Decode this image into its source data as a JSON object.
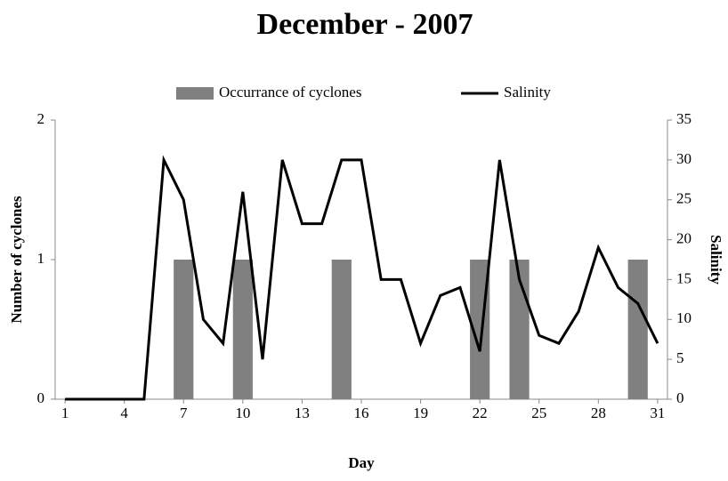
{
  "chart_data": {
    "type": "combo",
    "title": "December - 2007",
    "x_label": "Day",
    "y_label": "Number of cyclones",
    "y2_label": "Salinity",
    "x": [
      1,
      2,
      3,
      4,
      5,
      6,
      7,
      8,
      9,
      10,
      11,
      12,
      13,
      14,
      15,
      16,
      17,
      18,
      19,
      20,
      21,
      22,
      23,
      24,
      25,
      26,
      27,
      28,
      29,
      30,
      31
    ],
    "xlim": [
      0.5,
      31.5
    ],
    "xticks": [
      1,
      4,
      7,
      10,
      13,
      16,
      19,
      22,
      25,
      28,
      31
    ],
    "ylim": [
      0,
      2
    ],
    "yticks": [
      0,
      1,
      2
    ],
    "y2lim": [
      0,
      35
    ],
    "y2ticks": [
      0,
      5,
      10,
      15,
      20,
      25,
      30,
      35
    ],
    "grid": false,
    "legend": "top",
    "series": [
      {
        "name": "Occurrance of cyclones",
        "type": "bar",
        "color": "#808080",
        "axis": "y",
        "values": [
          0,
          0,
          0,
          0,
          0,
          0,
          1,
          0,
          0,
          1,
          0,
          0,
          0,
          0,
          1,
          0,
          0,
          0,
          0,
          0,
          0,
          1,
          0,
          1,
          0,
          0,
          0,
          0,
          0,
          1,
          0
        ]
      },
      {
        "name": "Salinity",
        "type": "line",
        "color": "#000000",
        "axis": "y2",
        "values": [
          0,
          0,
          0,
          0,
          0,
          30,
          25,
          10,
          7,
          26,
          5,
          30,
          22,
          22,
          30,
          30,
          15,
          15,
          7,
          13,
          14,
          6,
          30,
          15,
          8,
          7,
          11,
          19,
          14,
          12,
          7
        ]
      }
    ]
  }
}
